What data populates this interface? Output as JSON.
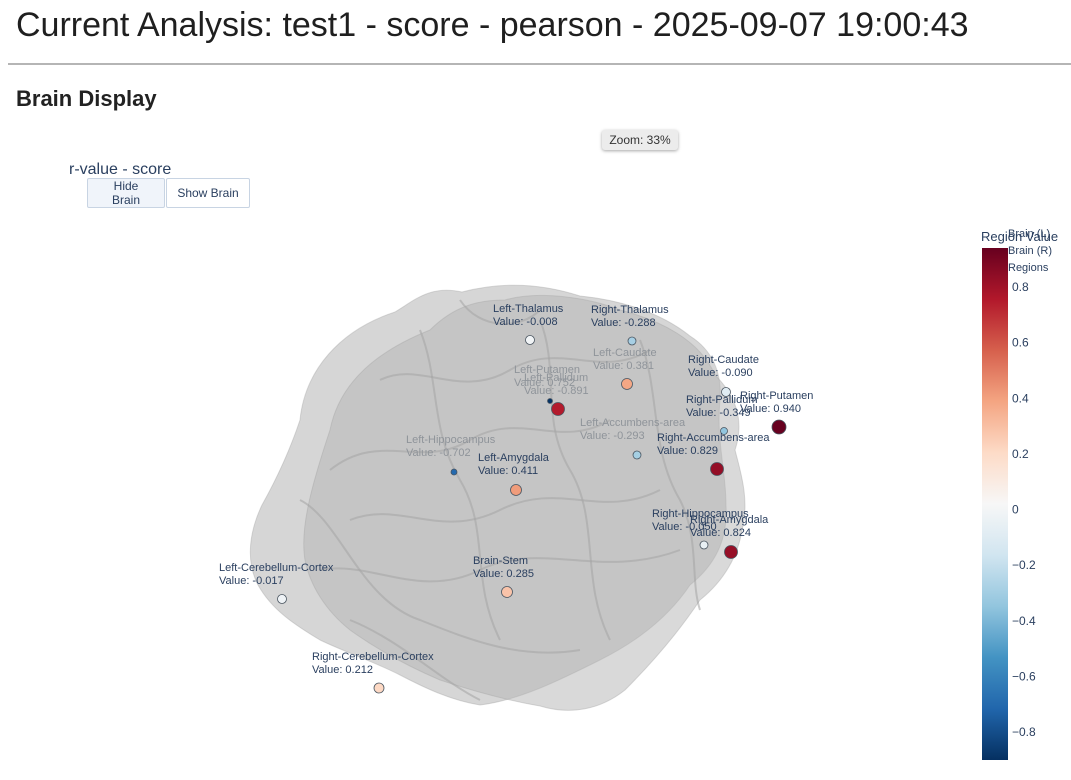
{
  "header": {
    "title": "Current Analysis: test1 - score - pearson - 2025-09-07 19:00:43"
  },
  "section": {
    "title": "Brain Display"
  },
  "zoom": {
    "label": "Zoom: 33%"
  },
  "controls": {
    "hide_label": "Hide Brain",
    "show_label": "Show Brain"
  },
  "legend": {
    "items": [
      "Brain (L)",
      "Brain (R)",
      "Regions"
    ]
  },
  "colors": {
    "brain_mesh": "#b4b4b4",
    "colorscale": [
      "#053061",
      "#2166ac",
      "#4393c3",
      "#92c5de",
      "#d1e5f0",
      "#f7f7f7",
      "#fddbc7",
      "#f4a582",
      "#d6604d",
      "#b2182b",
      "#67001f"
    ]
  },
  "chart_data": {
    "type": "scatter",
    "title": "r-value - score",
    "colorbar": {
      "title": "Region Value",
      "range": [
        -0.9,
        0.94
      ],
      "ticks": [
        0.8,
        0.6,
        0.4,
        0.2,
        0,
        -0.2,
        -0.4,
        -0.6,
        -0.8
      ],
      "tick_labels": [
        "0.8",
        "0.6",
        "0.4",
        "0.2",
        "0",
        "−0.2",
        "−0.4",
        "−0.6",
        "−0.8"
      ]
    },
    "regions": [
      {
        "name": "Left-Thalamus",
        "value": -0.008,
        "value_label": "Value: -0.008"
      },
      {
        "name": "Right-Thalamus",
        "value": -0.288,
        "value_label": "Value: -0.288"
      },
      {
        "name": "Left-Caudate",
        "value": 0.381,
        "value_label": "Value: 0.381"
      },
      {
        "name": "Right-Caudate",
        "value": -0.09,
        "value_label": "Value: -0.090"
      },
      {
        "name": "Left-Putamen",
        "value": 0.752,
        "value_label": "Value: 0.752"
      },
      {
        "name": "Left-Pallidum",
        "value": -0.891,
        "value_label": "Value: -0.891"
      },
      {
        "name": "Right-Putamen",
        "value": 0.94,
        "value_label": "Value: 0.940"
      },
      {
        "name": "Right-Pallidum",
        "value": -0.349,
        "value_label": "Value: -0.349"
      },
      {
        "name": "Left-Accumbens-area",
        "value": -0.293,
        "value_label": "Value: -0.293"
      },
      {
        "name": "Right-Accumbens-area",
        "value": 0.829,
        "value_label": "Value: 0.829"
      },
      {
        "name": "Left-Hippocampus",
        "value": -0.702,
        "value_label": "Value: -0.702"
      },
      {
        "name": "Left-Amygdala",
        "value": 0.411,
        "value_label": "Value: 0.411"
      },
      {
        "name": "Right-Hippocampus",
        "value": -0.05,
        "value_label": "Value: -0.050"
      },
      {
        "name": "Right-Amygdala",
        "value": 0.824,
        "value_label": "Value: 0.824"
      },
      {
        "name": "Brain-Stem",
        "value": 0.285,
        "value_label": "Value: 0.285"
      },
      {
        "name": "Left-Cerebellum-Cortex",
        "value": -0.017,
        "value_label": "Value: -0.017"
      },
      {
        "name": "Right-Cerebellum-Cortex",
        "value": 0.212,
        "value_label": "Value: 0.212"
      }
    ]
  }
}
